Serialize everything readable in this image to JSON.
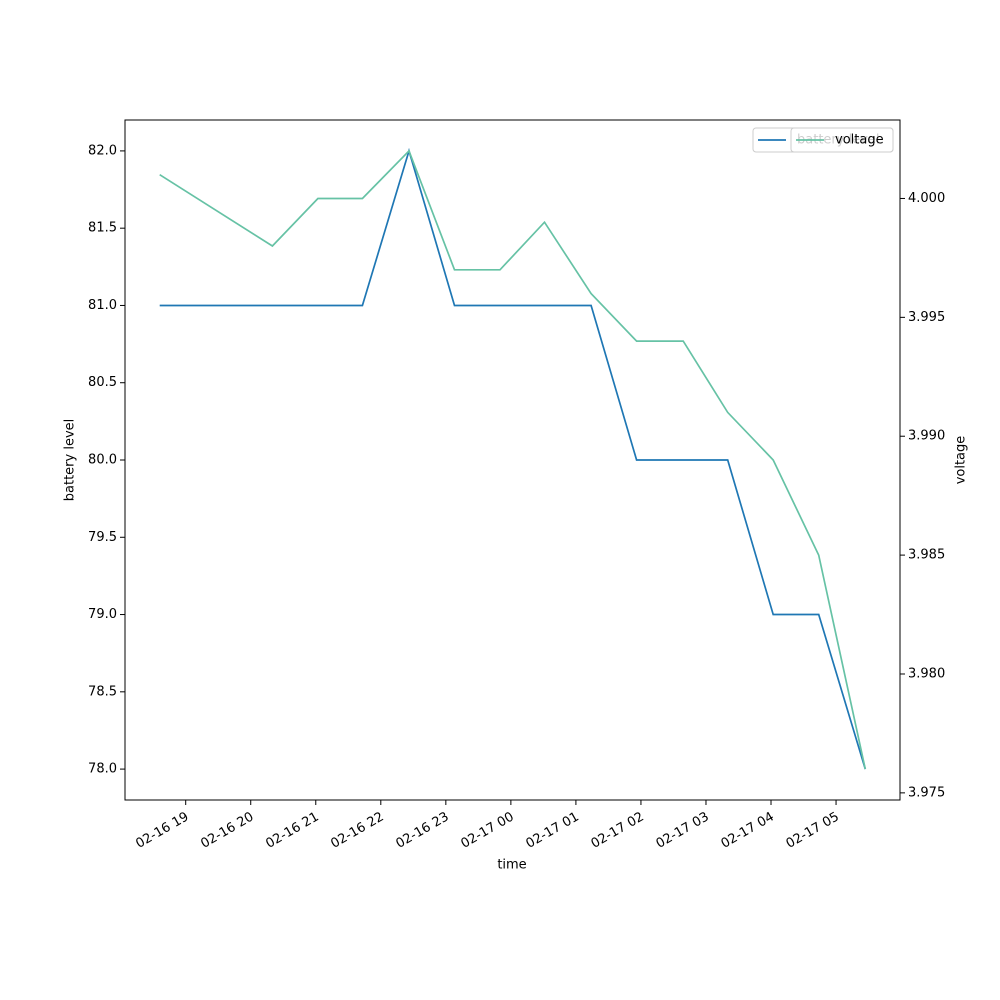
{
  "chart_data": {
    "type": "line",
    "x": [
      "02-16 18:36",
      "02-16 20:20",
      "02-16 21:02",
      "02-16 21:43",
      "02-16 22:26",
      "02-16 23:08",
      "02-16 23:50",
      "02-17 00:31",
      "02-17 01:14",
      "02-17 01:56",
      "02-17 02:39",
      "02-17 03:20",
      "02-17 04:02",
      "02-17 04:44",
      "02-17 05:27"
    ],
    "series": [
      {
        "name": "battery level",
        "color": "#1f77b4",
        "values": [
          81,
          81,
          81,
          81,
          82,
          81,
          81,
          81,
          81,
          80,
          80,
          80,
          79,
          79,
          78
        ]
      },
      {
        "name": "voltage",
        "color": "#66c2a5",
        "axis": "y2",
        "values": [
          4.001,
          3.998,
          4.0,
          4.0,
          4.002,
          3.997,
          3.997,
          3.999,
          3.996,
          3.994,
          3.994,
          3.991,
          3.989,
          3.985,
          3.976
        ]
      }
    ],
    "xlabel": "time",
    "ylabel": "battery level",
    "y2label": "voltage",
    "xlim": [
      "02-16 18:04",
      "02-17 05:59"
    ],
    "xticks": [
      "02-16 19",
      "02-16 20",
      "02-16 21",
      "02-16 22",
      "02-16 23",
      "02-17 00",
      "02-17 01",
      "02-17 02",
      "02-17 03",
      "02-17 04",
      "02-17 05"
    ],
    "ylim": [
      77.8,
      82.2
    ],
    "yticks": [
      {
        "value": 78,
        "label": "78.0"
      },
      78.5,
      {
        "value": 79,
        "label": "79.0"
      },
      79.5,
      {
        "value": 80,
        "label": "80.0"
      },
      80.5,
      {
        "value": 81,
        "label": "81.0"
      },
      81.5,
      {
        "value": 82,
        "label": "82.0"
      }
    ],
    "y2lim": [
      3.9747,
      4.0033
    ],
    "y2ticks": [
      3.975,
      {
        "value": 3.98,
        "label": "3.980"
      },
      3.985,
      {
        "value": 3.99,
        "label": "3.990"
      },
      3.995,
      {
        "value": 4,
        "label": "4.000"
      }
    ],
    "legend": "upper right"
  }
}
